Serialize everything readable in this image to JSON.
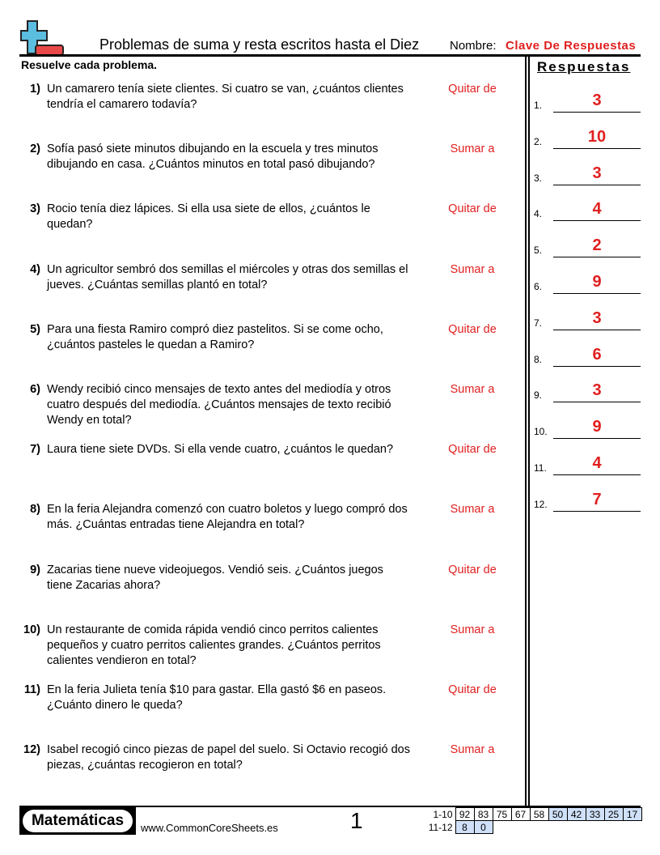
{
  "header": {
    "title": "Problemas de suma y resta escritos hasta el Diez",
    "name_label": "Nombre:",
    "name_value": "Clave De Respuestas",
    "logo": "plus-minus-icon"
  },
  "instructions": "Resuelve cada problema.",
  "answers_title": "Respuestas",
  "problems": [
    {
      "num": "1)",
      "text": "Un camarero tenía siete clientes. Si cuatro se van, ¿cuántos clientes tendría el camarero todavía?",
      "op": "Quitar de"
    },
    {
      "num": "2)",
      "text": "Sofía pasó siete minutos dibujando en la escuela y tres minutos dibujando en casa. ¿Cuántos minutos en total pasó dibujando?",
      "op": "Sumar a"
    },
    {
      "num": "3)",
      "text": "Rocio tenía diez lápices. Si ella usa siete de ellos, ¿cuántos le quedan?",
      "op": "Quitar de"
    },
    {
      "num": "4)",
      "text": "Un agricultor sembró dos semillas el miércoles y otras dos semillas el jueves. ¿Cuántas semillas plantó en total?",
      "op": "Sumar a"
    },
    {
      "num": "5)",
      "text": "Para una fiesta Ramiro compró diez pastelitos. Si se come ocho, ¿cuántos pasteles le quedan a Ramiro?",
      "op": "Quitar de"
    },
    {
      "num": "6)",
      "text": "Wendy recibió cinco mensajes de texto antes del mediodía y otros cuatro después del mediodía. ¿Cuántos mensajes de texto recibió Wendy en total?",
      "op": "Sumar a"
    },
    {
      "num": "7)",
      "text": "Laura tiene siete DVDs. Si ella vende cuatro, ¿cuántos le quedan?",
      "op": "Quitar de"
    },
    {
      "num": "8)",
      "text": "En la feria Alejandra comenzó con cuatro boletos y luego compró dos más. ¿Cuántas entradas tiene Alejandra en total?",
      "op": "Sumar a"
    },
    {
      "num": "9)",
      "text": "Zacarias tiene nueve videojuegos. Vendió seis. ¿Cuántos juegos tiene Zacarias ahora?",
      "op": "Quitar de"
    },
    {
      "num": "10)",
      "text": "Un restaurante de comida rápida vendió cinco perritos calientes pequeños y cuatro perritos calientes grandes. ¿Cuántos perritos calientes vendieron en total?",
      "op": "Sumar a"
    },
    {
      "num": "11)",
      "text": "En la feria Julieta tenía $10 para gastar. Ella gastó $6 en paseos. ¿Cuánto dinero le queda?",
      "op": "Quitar de"
    },
    {
      "num": "12)",
      "text": "Isabel recogió cinco piezas de papel del suelo. Si Octavio recogió dos piezas, ¿cuántas recogieron en total?",
      "op": "Sumar a"
    }
  ],
  "answers": [
    {
      "n": "1.",
      "v": "3"
    },
    {
      "n": "2.",
      "v": "10"
    },
    {
      "n": "3.",
      "v": "3"
    },
    {
      "n": "4.",
      "v": "4"
    },
    {
      "n": "5.",
      "v": "2"
    },
    {
      "n": "6.",
      "v": "9"
    },
    {
      "n": "7.",
      "v": "3"
    },
    {
      "n": "8.",
      "v": "6"
    },
    {
      "n": "9.",
      "v": "3"
    },
    {
      "n": "10.",
      "v": "9"
    },
    {
      "n": "11.",
      "v": "4"
    },
    {
      "n": "12.",
      "v": "7"
    }
  ],
  "footer": {
    "brand": "Matemáticas",
    "site": "www.CommonCoreSheets.es",
    "page": "1",
    "score_rows": [
      {
        "label": "1-10",
        "cells": [
          "92",
          "83",
          "75",
          "67",
          "58",
          "50",
          "42",
          "33",
          "25",
          "17"
        ]
      },
      {
        "label": "11-12",
        "cells": [
          "8",
          "0"
        ]
      }
    ]
  },
  "colors": {
    "accent": "#e02020",
    "score_highlight": "#cfe0f8"
  }
}
